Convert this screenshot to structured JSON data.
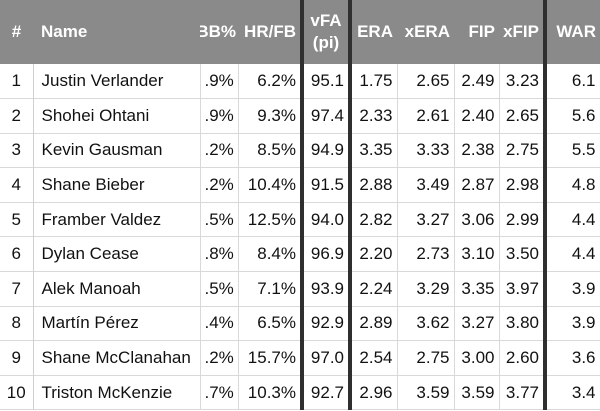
{
  "columns": {
    "rank": "#",
    "name": "Name",
    "bb": "BB%",
    "hrfb": "HR/FB",
    "vfa_line1": "vFA",
    "vfa_line2": "(pi)",
    "era": "ERA",
    "xera": "xERA",
    "fip": "FIP",
    "xfip": "xFIP",
    "war": "WAR"
  },
  "rows": [
    {
      "rank": "1",
      "name": "Justin Verlander",
      "bb": ".9%",
      "hrfb": "6.2%",
      "vfa": "95.1",
      "era": "1.75",
      "xera": "2.65",
      "fip": "2.49",
      "xfip": "3.23",
      "war": "6.1"
    },
    {
      "rank": "2",
      "name": "Shohei Ohtani",
      "bb": ".9%",
      "hrfb": "9.3%",
      "vfa": "97.4",
      "era": "2.33",
      "xera": "2.61",
      "fip": "2.40",
      "xfip": "2.65",
      "war": "5.6"
    },
    {
      "rank": "3",
      "name": "Kevin Gausman",
      "bb": ".2%",
      "hrfb": "8.5%",
      "vfa": "94.9",
      "era": "3.35",
      "xera": "3.33",
      "fip": "2.38",
      "xfip": "2.75",
      "war": "5.5"
    },
    {
      "rank": "4",
      "name": "Shane Bieber",
      "bb": ".2%",
      "hrfb": "10.4%",
      "vfa": "91.5",
      "era": "2.88",
      "xera": "3.49",
      "fip": "2.87",
      "xfip": "2.98",
      "war": "4.8"
    },
    {
      "rank": "5",
      "name": "Framber Valdez",
      "bb": ".5%",
      "hrfb": "12.5%",
      "vfa": "94.0",
      "era": "2.82",
      "xera": "3.27",
      "fip": "3.06",
      "xfip": "2.99",
      "war": "4.4"
    },
    {
      "rank": "6",
      "name": "Dylan Cease",
      "bb": ".8%",
      "hrfb": "8.4%",
      "vfa": "96.9",
      "era": "2.20",
      "xera": "2.73",
      "fip": "3.10",
      "xfip": "3.50",
      "war": "4.4"
    },
    {
      "rank": "7",
      "name": "Alek Manoah",
      "bb": ".5%",
      "hrfb": "7.1%",
      "vfa": "93.9",
      "era": "2.24",
      "xera": "3.29",
      "fip": "3.35",
      "xfip": "3.97",
      "war": "3.9"
    },
    {
      "rank": "8",
      "name": "Martín Pérez",
      "bb": ".4%",
      "hrfb": "6.5%",
      "vfa": "92.9",
      "era": "2.89",
      "xera": "3.62",
      "fip": "3.27",
      "xfip": "3.80",
      "war": "3.9"
    },
    {
      "rank": "9",
      "name": "Shane McClanahan",
      "bb": ".2%",
      "hrfb": "15.7%",
      "vfa": "97.0",
      "era": "2.54",
      "xera": "2.75",
      "fip": "3.00",
      "xfip": "2.60",
      "war": "3.6"
    },
    {
      "rank": "10",
      "name": "Triston McKenzie",
      "bb": ".7%",
      "hrfb": "10.3%",
      "vfa": "92.7",
      "era": "2.96",
      "xera": "3.59",
      "fip": "3.59",
      "xfip": "3.77",
      "war": "3.4"
    }
  ],
  "colors": {
    "header_bg": "#8a8a8a",
    "header_text": "#ffffff",
    "divider": "#2f2f2f",
    "row_border": "#d9d9d9"
  }
}
